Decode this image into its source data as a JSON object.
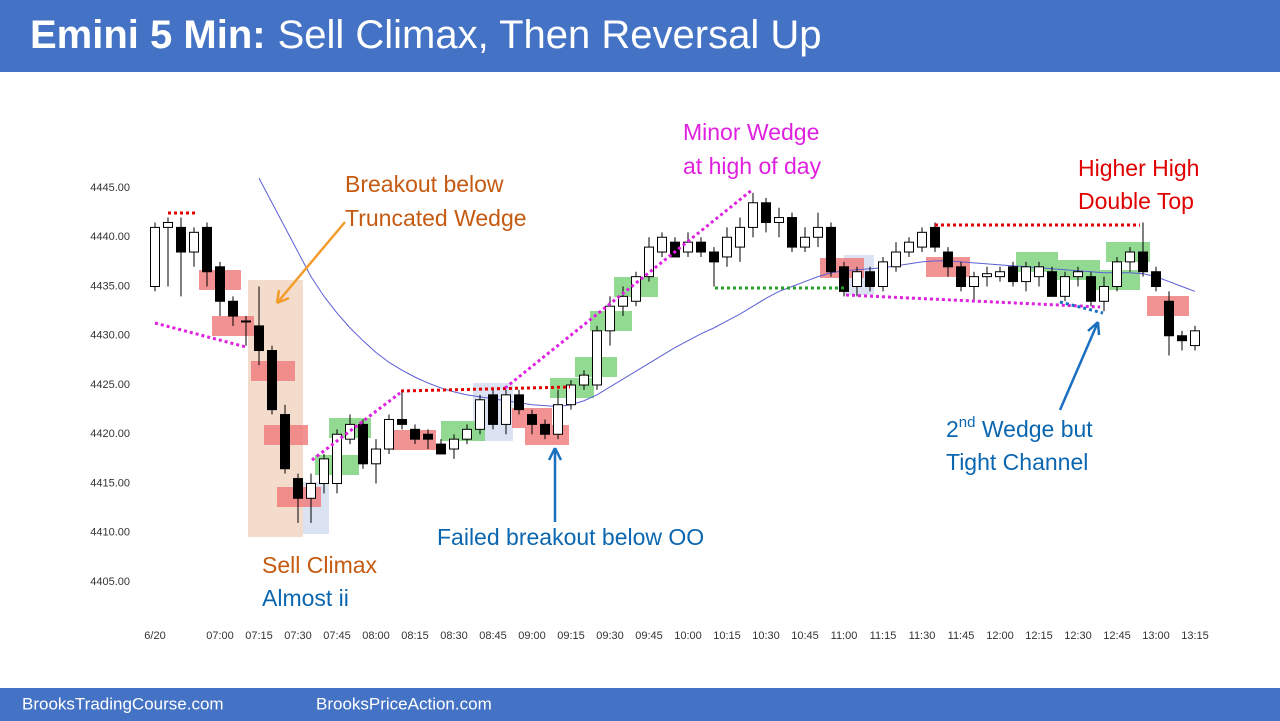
{
  "header": {
    "title_bold": "Emini 5 Min:",
    "title_rest": "Sell Climax, Then Reversal Up"
  },
  "footer": {
    "left": "BrooksTradingCourse.com",
    "right": "BrooksPriceAction.com"
  },
  "chart_data": {
    "type": "candlestick",
    "categories": [
      "6/20",
      null,
      null,
      null,
      null,
      "07:00",
      null,
      null,
      "07:15",
      null,
      null,
      "07:30",
      null,
      null,
      "07:45",
      null,
      null,
      "08:00",
      null,
      null,
      "08:15",
      null,
      null,
      "08:30",
      null,
      null,
      "08:45",
      null,
      null,
      "09:00",
      null,
      null,
      "09:15",
      null,
      null,
      "09:30",
      null,
      null,
      "09:45",
      null,
      null,
      "10:00",
      null,
      null,
      "10:15",
      null,
      null,
      "10:30",
      null,
      null,
      "10:45",
      null,
      null,
      "11:00",
      null,
      null,
      "11:15",
      null,
      null,
      "11:30",
      null,
      null,
      "11:45",
      null,
      null,
      "12:00",
      null,
      null,
      "12:15",
      null,
      null,
      "12:30",
      null,
      null,
      "12:45",
      null,
      null,
      "13:00",
      null,
      null,
      "13:15"
    ],
    "open": [
      4435,
      4441,
      4441,
      4438.5,
      4441,
      4437,
      4433.5,
      4431.5,
      4431,
      4428.5,
      4422,
      4415.5,
      4413.5,
      4415,
      4415,
      4419.5,
      4421,
      4417,
      4418.5,
      4421.5,
      4420.5,
      4420,
      4419,
      4418.5,
      4419.5,
      4420.5,
      4424,
      4421,
      4424,
      4422,
      4421,
      4420,
      4423,
      4425,
      4425,
      4430.5,
      4433,
      4433.5,
      4436,
      4438.5,
      4439.5,
      4438.5,
      4439.5,
      4438.5,
      4438,
      4439,
      4441,
      4443.5,
      4441.5,
      4442,
      4439,
      4440,
      4441,
      4437,
      4435,
      4436.5,
      4435,
      4437,
      4438.5,
      4439,
      4441,
      4438.5,
      4437,
      4435,
      4436,
      4436,
      4437,
      4435.5,
      4436,
      4436.5,
      4434,
      4436,
      4436,
      4433.5,
      4435,
      4437.5,
      4438.5,
      4436.5,
      4433.5,
      4430,
      4429
    ],
    "high": [
      4441.5,
      4442,
      4442,
      4441,
      4441.5,
      4437.5,
      4434,
      4432,
      4435,
      4429,
      4423,
      4416,
      4416,
      4418,
      4420.5,
      4422,
      4421.5,
      4419.5,
      4422,
      4424.5,
      4421,
      4420.5,
      4419.5,
      4420,
      4421,
      4424,
      4424.5,
      4424.5,
      4424.5,
      4422.5,
      4421.5,
      4424.5,
      4425.5,
      4426.5,
      4431,
      4434,
      4435,
      4436.5,
      4440,
      4440.5,
      4440,
      4440.5,
      4440,
      4439,
      4441,
      4442,
      4444.5,
      4444,
      4443,
      4442.5,
      4441,
      4442.5,
      4441.5,
      4437.5,
      4437,
      4437,
      4438,
      4439.5,
      4440,
      4441,
      4441.5,
      4439,
      4437.5,
      4436.5,
      4437,
      4437,
      4437.5,
      4437.5,
      4437.5,
      4437,
      4436.5,
      4437,
      4436.5,
      4436,
      4438,
      4439,
      4441.5,
      4437,
      4434.5,
      4430.5,
      4431
    ],
    "low": [
      4434.5,
      4435,
      4434,
      4437,
      4435,
      4432,
      4431,
      4429,
      4427,
      4422,
      4416,
      4411,
      4411,
      4414,
      4414,
      4419,
      4416.5,
      4415,
      4418,
      4420.5,
      4419,
      4418.5,
      4418,
      4417.5,
      4419,
      4420,
      4420.5,
      4420,
      4422,
      4420,
      4419.5,
      4419.5,
      4422.5,
      4424.5,
      4424.5,
      4429,
      4432,
      4433,
      4435.5,
      4438,
      4438,
      4438,
      4438,
      4435,
      4437,
      4437.5,
      4440,
      4440.5,
      4440,
      4438.5,
      4438.5,
      4439,
      4436,
      4434,
      4434,
      4434.5,
      4434.5,
      4436.5,
      4438,
      4438.5,
      4438.5,
      4436,
      4434.5,
      4433.5,
      4435,
      4435.5,
      4435,
      4434.5,
      4435,
      4434,
      4433.5,
      4435,
      4433,
      4432.5,
      4434.5,
      4436.5,
      4436,
      4434.5,
      4428,
      4428.5,
      4428.5
    ],
    "close": [
      4441,
      4441.5,
      4438.5,
      4440.5,
      4436.5,
      4433.5,
      4432,
      4431.5,
      4428.5,
      4422.5,
      4416.5,
      4413.5,
      4415,
      4417.5,
      4420,
      4421,
      4417,
      4418.5,
      4421.5,
      4421,
      4419.5,
      4419.5,
      4418,
      4419.5,
      4420.5,
      4423.5,
      4421,
      4424,
      4422.5,
      4421,
      4420,
      4423,
      4425,
      4426,
      4430.5,
      4433,
      4434,
      4436,
      4439,
      4440,
      4438,
      4439.5,
      4438.5,
      4437.5,
      4440,
      4441,
      4443.5,
      4441.5,
      4442,
      4439,
      4440,
      4441,
      4436.5,
      4434.5,
      4436.5,
      4435,
      4437.5,
      4438.5,
      4439.5,
      4440.5,
      4439,
      4437,
      4435,
      4436,
      4436.3,
      4436.5,
      4435.5,
      4437,
      4437,
      4434,
      4436,
      4436.5,
      4433.5,
      4435,
      4437.5,
      4438.5,
      4436.5,
      4435,
      4430,
      4429.5,
      4430.5
    ],
    "up_color": "#ffffff",
    "down_color": "#000000",
    "moving_average": {
      "color": "#5b5fd6",
      "values": [
        null,
        null,
        null,
        null,
        null,
        null,
        null,
        null,
        4446,
        4443.5,
        4441,
        4438.5,
        4436,
        4434,
        4432.3,
        4430.8,
        4429.5,
        4428.3,
        4427.3,
        4426.5,
        4425.8,
        4425.2,
        4424.7,
        4424.3,
        4424,
        4423.8,
        4423.6,
        4423.4,
        4423.2,
        4423,
        4422.9,
        4422.8,
        4423,
        4423.4,
        4424,
        4424.8,
        4425.6,
        4426.4,
        4427.2,
        4428,
        4428.8,
        4429.5,
        4430.2,
        4430.8,
        4431.5,
        4432.2,
        4433,
        4433.8,
        4434.5,
        4435,
        4435.5,
        4436,
        4436.4,
        4436.6,
        4436.7,
        4436.8,
        4436.9,
        4437.1,
        4437.3,
        4437.5,
        4437.6,
        4437.6,
        4437.5,
        4437.4,
        4437.3,
        4437.2,
        4437.1,
        4437,
        4436.9,
        4436.8,
        4436.7,
        4436.6,
        4436.5,
        4436.4,
        4436.4,
        4436.4,
        4436.3,
        4436,
        4435.5,
        4435,
        4434.5
      ]
    },
    "ylim": [
      4403,
      4447
    ],
    "yticks": [
      {
        "value": 4405,
        "label": "4405.00"
      },
      {
        "value": 4410,
        "label": "4410.00"
      },
      {
        "value": 4415,
        "label": "4415.00"
      },
      {
        "value": 4420,
        "label": "4420.00"
      },
      {
        "value": 4425,
        "label": "4425.00"
      },
      {
        "value": 4430,
        "label": "4430.00"
      },
      {
        "value": 4435,
        "label": "4435.00"
      },
      {
        "value": 4440,
        "label": "4440.00"
      },
      {
        "value": 4445,
        "label": "4445.00"
      }
    ],
    "grid": false,
    "annotations": {
      "breakout": [
        "Breakout below",
        "Truncated Wedge"
      ],
      "minor_wedge": [
        "Minor Wedge",
        "at high of day"
      ],
      "higher_high": [
        "Higher High",
        "Double Top"
      ],
      "second_wedge": {
        "line1": [
          "2",
          "nd",
          " Wedge but"
        ],
        "line2": "Tight Channel"
      },
      "failed_breakout": "Failed breakout below OO",
      "sell_climax": [
        "Sell Climax",
        "Almost ii"
      ]
    }
  }
}
